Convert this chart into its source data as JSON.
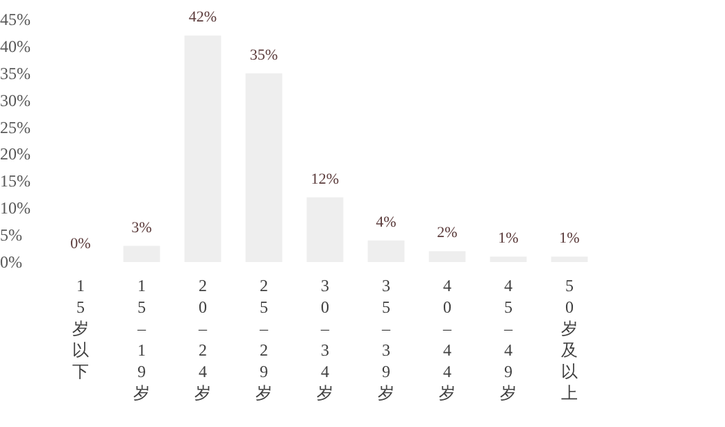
{
  "chart_data": {
    "type": "bar",
    "categories": [
      "15岁以下",
      "15–19岁",
      "20–24岁",
      "25–29岁",
      "30–34岁",
      "35–39岁",
      "40–44岁",
      "45–49岁",
      "50岁及以上"
    ],
    "values": [
      0,
      3,
      42,
      35,
      12,
      4,
      2,
      1,
      1
    ],
    "value_labels": [
      "0%",
      "3%",
      "42%",
      "35%",
      "12%",
      "4%",
      "2%",
      "1%",
      "1%"
    ],
    "color": "#eeeeee",
    "ylim": [
      0,
      45
    ],
    "yticks": [
      {
        "value": 0,
        "label": "0%"
      },
      {
        "value": 5,
        "label": "5%"
      },
      {
        "value": 10,
        "label": "10%"
      },
      {
        "value": 15,
        "label": "15%"
      },
      {
        "value": 20,
        "label": "20%"
      },
      {
        "value": 25,
        "label": "25%"
      },
      {
        "value": 30,
        "label": "30%"
      },
      {
        "value": 35,
        "label": "35%"
      },
      {
        "value": 40,
        "label": "40%"
      },
      {
        "value": 45,
        "label": "45%"
      }
    ]
  }
}
